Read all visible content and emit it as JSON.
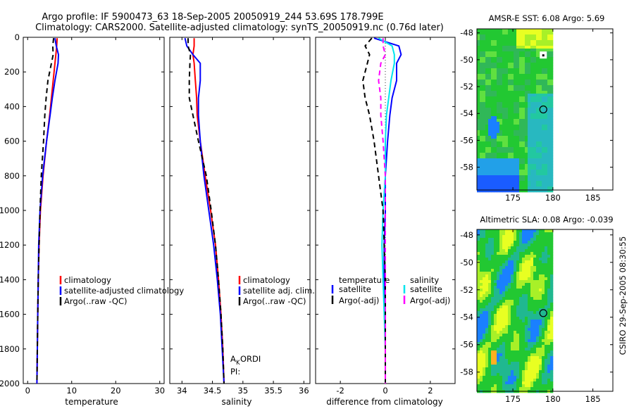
{
  "title": {
    "line1": "Argo profile: IF 5900473_63 18-Sep-2005 20050919_244 53.69S 178.799E",
    "line2": "Climatology: CARS2000. Satellite-adjusted climatology: synTS_20050919.nc (0.76d later)"
  },
  "side_stamp": "CSIRO 29-Sep-2005 08:30:55",
  "colors": {
    "climatology": "#ff0000",
    "satellite": "#0000ff",
    "argo": "#000000",
    "cyan": "#00e5ee",
    "magenta": "#ff00ff",
    "map_mid": "#22c832",
    "map_low": "#1a5cff",
    "map_high": "#e8ff22"
  },
  "chart_data": [
    {
      "type": "line",
      "id": "temperature",
      "xlabel": "temperature",
      "xlim": [
        -1,
        31
      ],
      "ylim": [
        2000,
        0
      ],
      "xticks": [
        0,
        10,
        20,
        30
      ],
      "yticks": [
        0,
        200,
        400,
        600,
        800,
        1000,
        1200,
        1400,
        1600,
        1800,
        2000
      ],
      "legend": [
        "climatology",
        "satellite-adjusted climatology",
        "Argo(..raw -QC)"
      ],
      "depth": [
        5,
        50,
        100,
        150,
        250,
        350,
        450,
        600,
        800,
        1000,
        1200,
        1400,
        1600,
        1800,
        2000
      ],
      "series": [
        {
          "name": "climatology",
          "color": "climatology",
          "dash": "",
          "values": [
            6.7,
            6.6,
            6.4,
            6.2,
            5.8,
            5.4,
            5.0,
            4.3,
            3.5,
            2.9,
            2.6,
            2.4,
            2.3,
            2.2,
            2.1
          ]
        },
        {
          "name": "satellite-adjusted climatology",
          "color": "satellite",
          "dash": "",
          "values": [
            6.2,
            6.5,
            7.0,
            6.9,
            6.2,
            5.6,
            5.1,
            4.3,
            3.4,
            2.8,
            2.5,
            2.4,
            2.3,
            2.2,
            2.1
          ]
        },
        {
          "name": "Argo(..raw -QC)",
          "color": "argo",
          "dash": "7,5",
          "values": [
            5.9,
            5.7,
            5.8,
            5.4,
            4.6,
            4.2,
            3.9,
            3.6,
            3.1,
            2.8,
            2.6,
            2.4,
            2.3,
            2.2,
            2.1
          ]
        }
      ]
    },
    {
      "type": "line",
      "id": "salinity",
      "xlabel": "salinity",
      "xlim": [
        33.8,
        36.1
      ],
      "ylim": [
        2000,
        0
      ],
      "xticks": [
        34,
        34.5,
        35,
        35.5,
        36
      ],
      "yticks": [
        0,
        200,
        400,
        600,
        800,
        1000,
        1200,
        1400,
        1600,
        1800,
        2000
      ],
      "legend": [
        "climatology",
        "satellite adj. clim.",
        "Argo(..raw -QC)"
      ],
      "annotations": [
        "A",
        "K",
        "ORDI",
        "PI:"
      ],
      "depth": [
        5,
        50,
        100,
        150,
        250,
        350,
        450,
        600,
        800,
        1000,
        1200,
        1400,
        1600,
        1800,
        2000
      ],
      "series": [
        {
          "name": "climatology",
          "color": "climatology",
          "dash": "",
          "values": [
            34.2,
            34.2,
            34.18,
            34.2,
            34.22,
            34.24,
            34.25,
            34.3,
            34.38,
            34.47,
            34.55,
            34.6,
            34.64,
            34.67,
            34.69
          ]
        },
        {
          "name": "satellite adj. clim.",
          "color": "satellite",
          "dash": "",
          "values": [
            34.05,
            34.08,
            34.18,
            34.3,
            34.3,
            34.27,
            34.27,
            34.3,
            34.36,
            34.44,
            34.52,
            34.58,
            34.63,
            34.66,
            34.69
          ]
        },
        {
          "name": "Argo(..raw -QC)",
          "color": "argo",
          "dash": "7,5",
          "values": [
            34.1,
            34.1,
            34.14,
            34.13,
            34.12,
            34.12,
            34.18,
            34.27,
            34.4,
            34.48,
            34.55,
            34.6,
            34.64,
            34.67,
            34.69
          ]
        }
      ]
    },
    {
      "type": "line",
      "id": "difference",
      "xlabel": "difference from climatology",
      "xlim": [
        -3.1,
        3.1
      ],
      "ylim": [
        2000,
        0
      ],
      "xticks": [
        -2,
        0,
        2
      ],
      "yticks": [
        0,
        200,
        400,
        600,
        800,
        1000,
        1200,
        1400,
        1600,
        1800,
        2000
      ],
      "legend_left": [
        "temperature",
        "satellite",
        "Argo(-adj)"
      ],
      "legend_right": [
        "salinity",
        "satellite",
        "Argo(-adj)"
      ],
      "depth": [
        5,
        50,
        100,
        150,
        250,
        350,
        450,
        600,
        800,
        1000,
        1200,
        1400,
        1600,
        1800,
        2000
      ],
      "series": [
        {
          "name": "temperature satellite",
          "color": "satellite",
          "dash": "",
          "values": [
            -0.5,
            0.6,
            0.7,
            0.5,
            0.5,
            0.3,
            0.2,
            0.1,
            0.0,
            0.0,
            -0.05,
            -0.05,
            0.0,
            0.0,
            0.0
          ]
        },
        {
          "name": "salinity satellite",
          "color": "cyan",
          "dash": "",
          "values": [
            -0.3,
            0.3,
            0.4,
            0.4,
            0.25,
            0.15,
            0.05,
            0.0,
            0.0,
            -0.1,
            -0.15,
            -0.1,
            -0.05,
            0.0,
            0.0
          ]
        },
        {
          "name": "temperature Argo(-adj)",
          "color": "argo",
          "dash": "7,5",
          "values": [
            -0.6,
            -0.9,
            -0.7,
            -0.8,
            -1.0,
            -0.9,
            -0.7,
            -0.5,
            -0.3,
            -0.1,
            -0.05,
            0.0,
            0.0,
            0.0,
            0.0
          ]
        },
        {
          "name": "salinity Argo(-adj)",
          "color": "magenta",
          "dash": "7,5",
          "values": [
            -0.1,
            -0.1,
            0.0,
            -0.2,
            -0.3,
            -0.2,
            -0.2,
            -0.1,
            0.0,
            0.0,
            0.0,
            0.0,
            0.0,
            0.0,
            0.0
          ]
        }
      ]
    },
    {
      "type": "heatmap",
      "id": "sst_map",
      "title": "AMSR-E SST: 6.08 Argo: 5.69",
      "xlim": [
        170.5,
        187.5
      ],
      "ylim": [
        -59.7,
        -47.7
      ],
      "xticks": [
        175,
        180,
        185
      ],
      "yticks": [
        -48,
        -50,
        -52,
        -54,
        -56,
        -58
      ],
      "data_xmax": 180,
      "marker": {
        "lon": 178.8,
        "lat": -53.7
      }
    },
    {
      "type": "heatmap",
      "id": "sla_map",
      "title": "Altimetric SLA: 0.08 Argo: -0.039",
      "xlim": [
        170.5,
        187.5
      ],
      "ylim": [
        -59.4,
        -47.6
      ],
      "xticks": [
        175,
        180,
        185
      ],
      "yticks": [
        -48,
        -50,
        -52,
        -54,
        -56,
        -58
      ],
      "data_xmax": 180,
      "marker": {
        "lon": 178.8,
        "lat": -53.7
      }
    }
  ]
}
